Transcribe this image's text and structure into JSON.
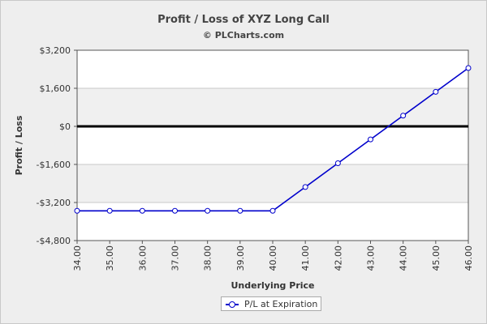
{
  "chart_data": {
    "type": "line",
    "title": "Profit / Loss of XYZ Long Call",
    "subtitle": "© PLCharts.com",
    "xlabel": "Underlying Price",
    "ylabel": "Profit / Loss",
    "x": [
      "34.00",
      "35.00",
      "36.00",
      "37.00",
      "38.00",
      "39.00",
      "40.00",
      "41.00",
      "42.00",
      "43.00",
      "44.00",
      "45.00",
      "46.00"
    ],
    "ylim": [
      -4800,
      3200
    ],
    "yticks": [
      3200,
      1600,
      0,
      -1600,
      -3200,
      -4800
    ],
    "ytick_labels": [
      "$3,200",
      "$1,600",
      "$0",
      "-$1,600",
      "-$3,200",
      "-$4,800"
    ],
    "series": [
      {
        "name": "P/L at Expiration",
        "color": "#0000cc",
        "values": [
          -3550,
          -3550,
          -3550,
          -3550,
          -3550,
          -3550,
          -3550,
          -2550,
          -1550,
          -550,
          450,
          1450,
          2450
        ]
      }
    ],
    "zero_line": true,
    "grid": true,
    "legend_position": "bottom-center"
  }
}
